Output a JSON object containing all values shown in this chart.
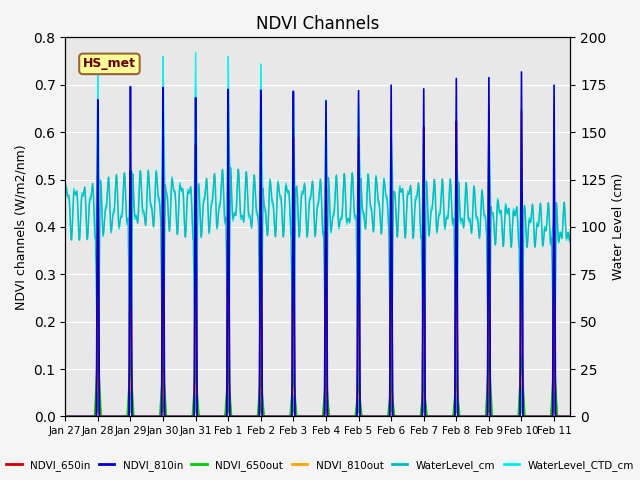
{
  "title": "NDVI Channels",
  "ylabel_left": "NDVI channels (W/m2/nm)",
  "ylabel_right": "Water Level (cm)",
  "ylim_left": [
    0.0,
    0.8
  ],
  "ylim_right": [
    0,
    200
  ],
  "background_color": "#e8e8e8",
  "legend_label": "HS_met",
  "xtick_labels": [
    "Jan 27",
    "Jan 28",
    "Jan 29",
    "Jan 30",
    "Jan 31",
    "Feb 1",
    "Feb 2",
    "Feb 3",
    "Feb 4",
    "Feb 5",
    "Feb 6",
    "Feb 7",
    "Feb 8",
    "Feb 9",
    "Feb 10",
    "Feb 11"
  ],
  "series_colors": {
    "NDVI_650in": "#cc0000",
    "NDVI_810in": "#0000cc",
    "NDVI_650out": "#00cc00",
    "NDVI_810out": "#ffa500",
    "WaterLevel_cm": "#00bbbb",
    "WaterLevel_CTD_cm": "#00eeee"
  },
  "spike_positions": [
    1.0,
    2.0,
    3.0,
    4.0,
    5.0,
    6.0,
    7.0,
    8.0,
    9.0,
    10.0,
    11.0,
    12.0,
    13.0,
    14.0,
    15.0
  ],
  "spike_heights_810in": [
    0.67,
    0.7,
    0.7,
    0.68,
    0.7,
    0.7,
    0.7,
    0.68,
    0.7,
    0.71,
    0.7,
    0.72,
    0.72,
    0.73,
    0.7
  ],
  "spike_heights_650in": [
    0.58,
    0.52,
    0.59,
    0.58,
    0.58,
    0.6,
    0.6,
    0.6,
    0.6,
    0.6,
    0.62,
    0.63,
    0.65,
    0.65,
    0.4
  ],
  "spike_heights_650out": [
    0.14,
    0.12,
    0.11,
    0.1,
    0.1,
    0.09,
    0.09,
    0.09,
    0.07,
    0.07,
    0.07,
    0.08,
    0.13,
    0.13,
    0.12
  ],
  "spike_heights_810out": [
    0.09,
    0.08,
    0.08,
    0.07,
    0.08,
    0.07,
    0.07,
    0.07,
    0.06,
    0.06,
    0.06,
    0.07,
    0.09,
    0.09,
    0.09
  ],
  "wl_base_cm": [
    110,
    112,
    115,
    110,
    115,
    110,
    112,
    110,
    112,
    112,
    110,
    110,
    105,
    102,
    100
  ],
  "wl_amp_cm": [
    12,
    12,
    12,
    12,
    12,
    12,
    12,
    12,
    12,
    12,
    12,
    10,
    10,
    8,
    8
  ],
  "wl_ctd_peak_cm": [
    180,
    132,
    190,
    192,
    190,
    186,
    168,
    167,
    165,
    150,
    148,
    148,
    150,
    130,
    105
  ],
  "figsize": [
    6.4,
    4.8
  ],
  "dpi": 100
}
